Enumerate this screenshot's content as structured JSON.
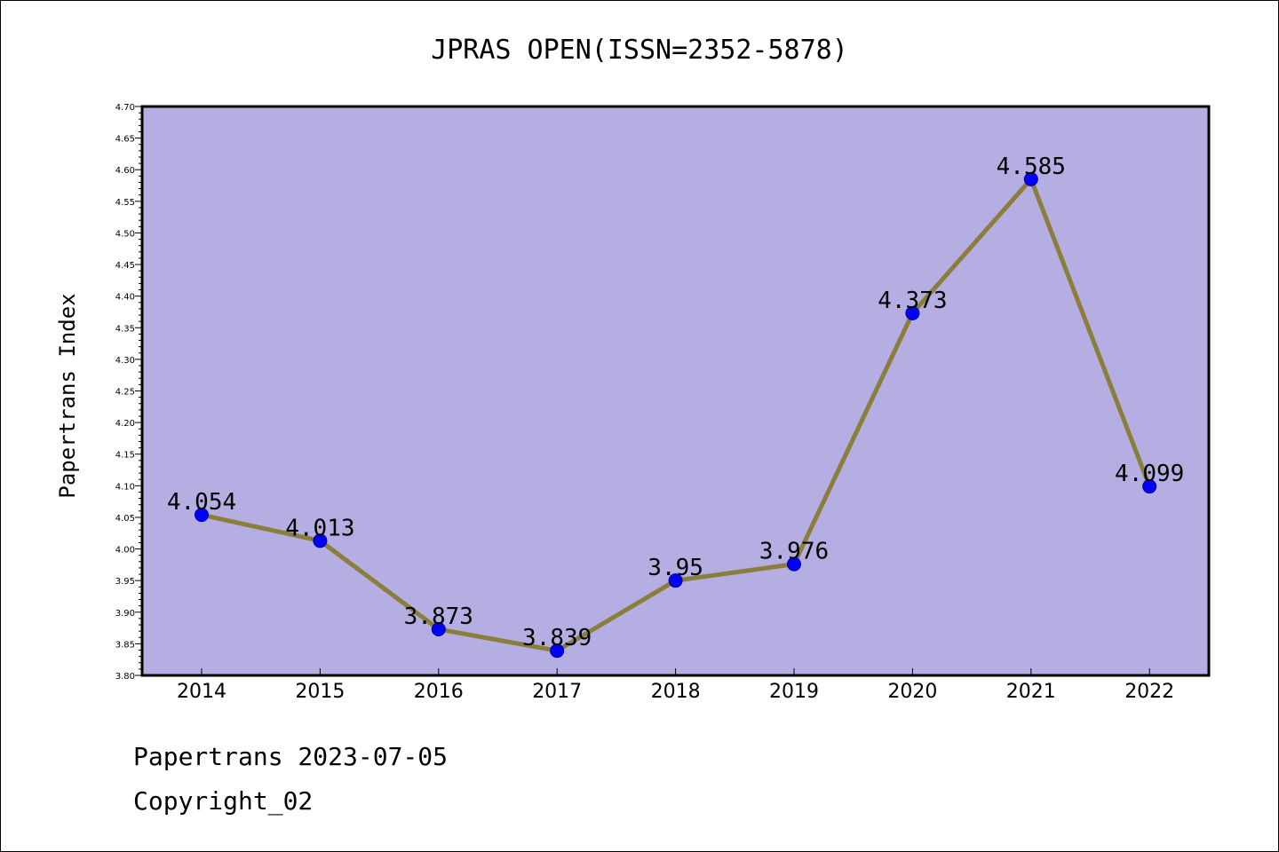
{
  "colors": {
    "plot_background": "#b4aee2",
    "line": "#8b7d3a",
    "marker": "#0000ff",
    "axis": "#000000"
  },
  "footer": {
    "line1": "Papertrans 2023-07-05",
    "line2": "Copyright_02"
  },
  "chart_data": {
    "type": "line",
    "title": "JPRAS OPEN(ISSN=2352-5878)",
    "xlabel": "",
    "ylabel": "Papertrans Index",
    "categories": [
      "2014",
      "2015",
      "2016",
      "2017",
      "2018",
      "2019",
      "2020",
      "2021",
      "2022"
    ],
    "values": [
      4.054,
      4.013,
      3.873,
      3.839,
      3.95,
      3.976,
      4.373,
      4.585,
      4.099
    ],
    "data_labels": [
      "4.054",
      "4.013",
      "3.873",
      "3.839",
      "3.95",
      "3.976",
      "4.373",
      "4.585",
      "4.099"
    ],
    "ylim": [
      3.8,
      4.7
    ],
    "yticks": [
      "3.80",
      "3.85",
      "3.90",
      "3.95",
      "4.00",
      "4.05",
      "4.10",
      "4.15",
      "4.20",
      "4.25",
      "4.30",
      "4.35",
      "4.40",
      "4.45",
      "4.50",
      "4.55",
      "4.60",
      "4.65",
      "4.70"
    ],
    "grid": false,
    "legend": "none"
  }
}
